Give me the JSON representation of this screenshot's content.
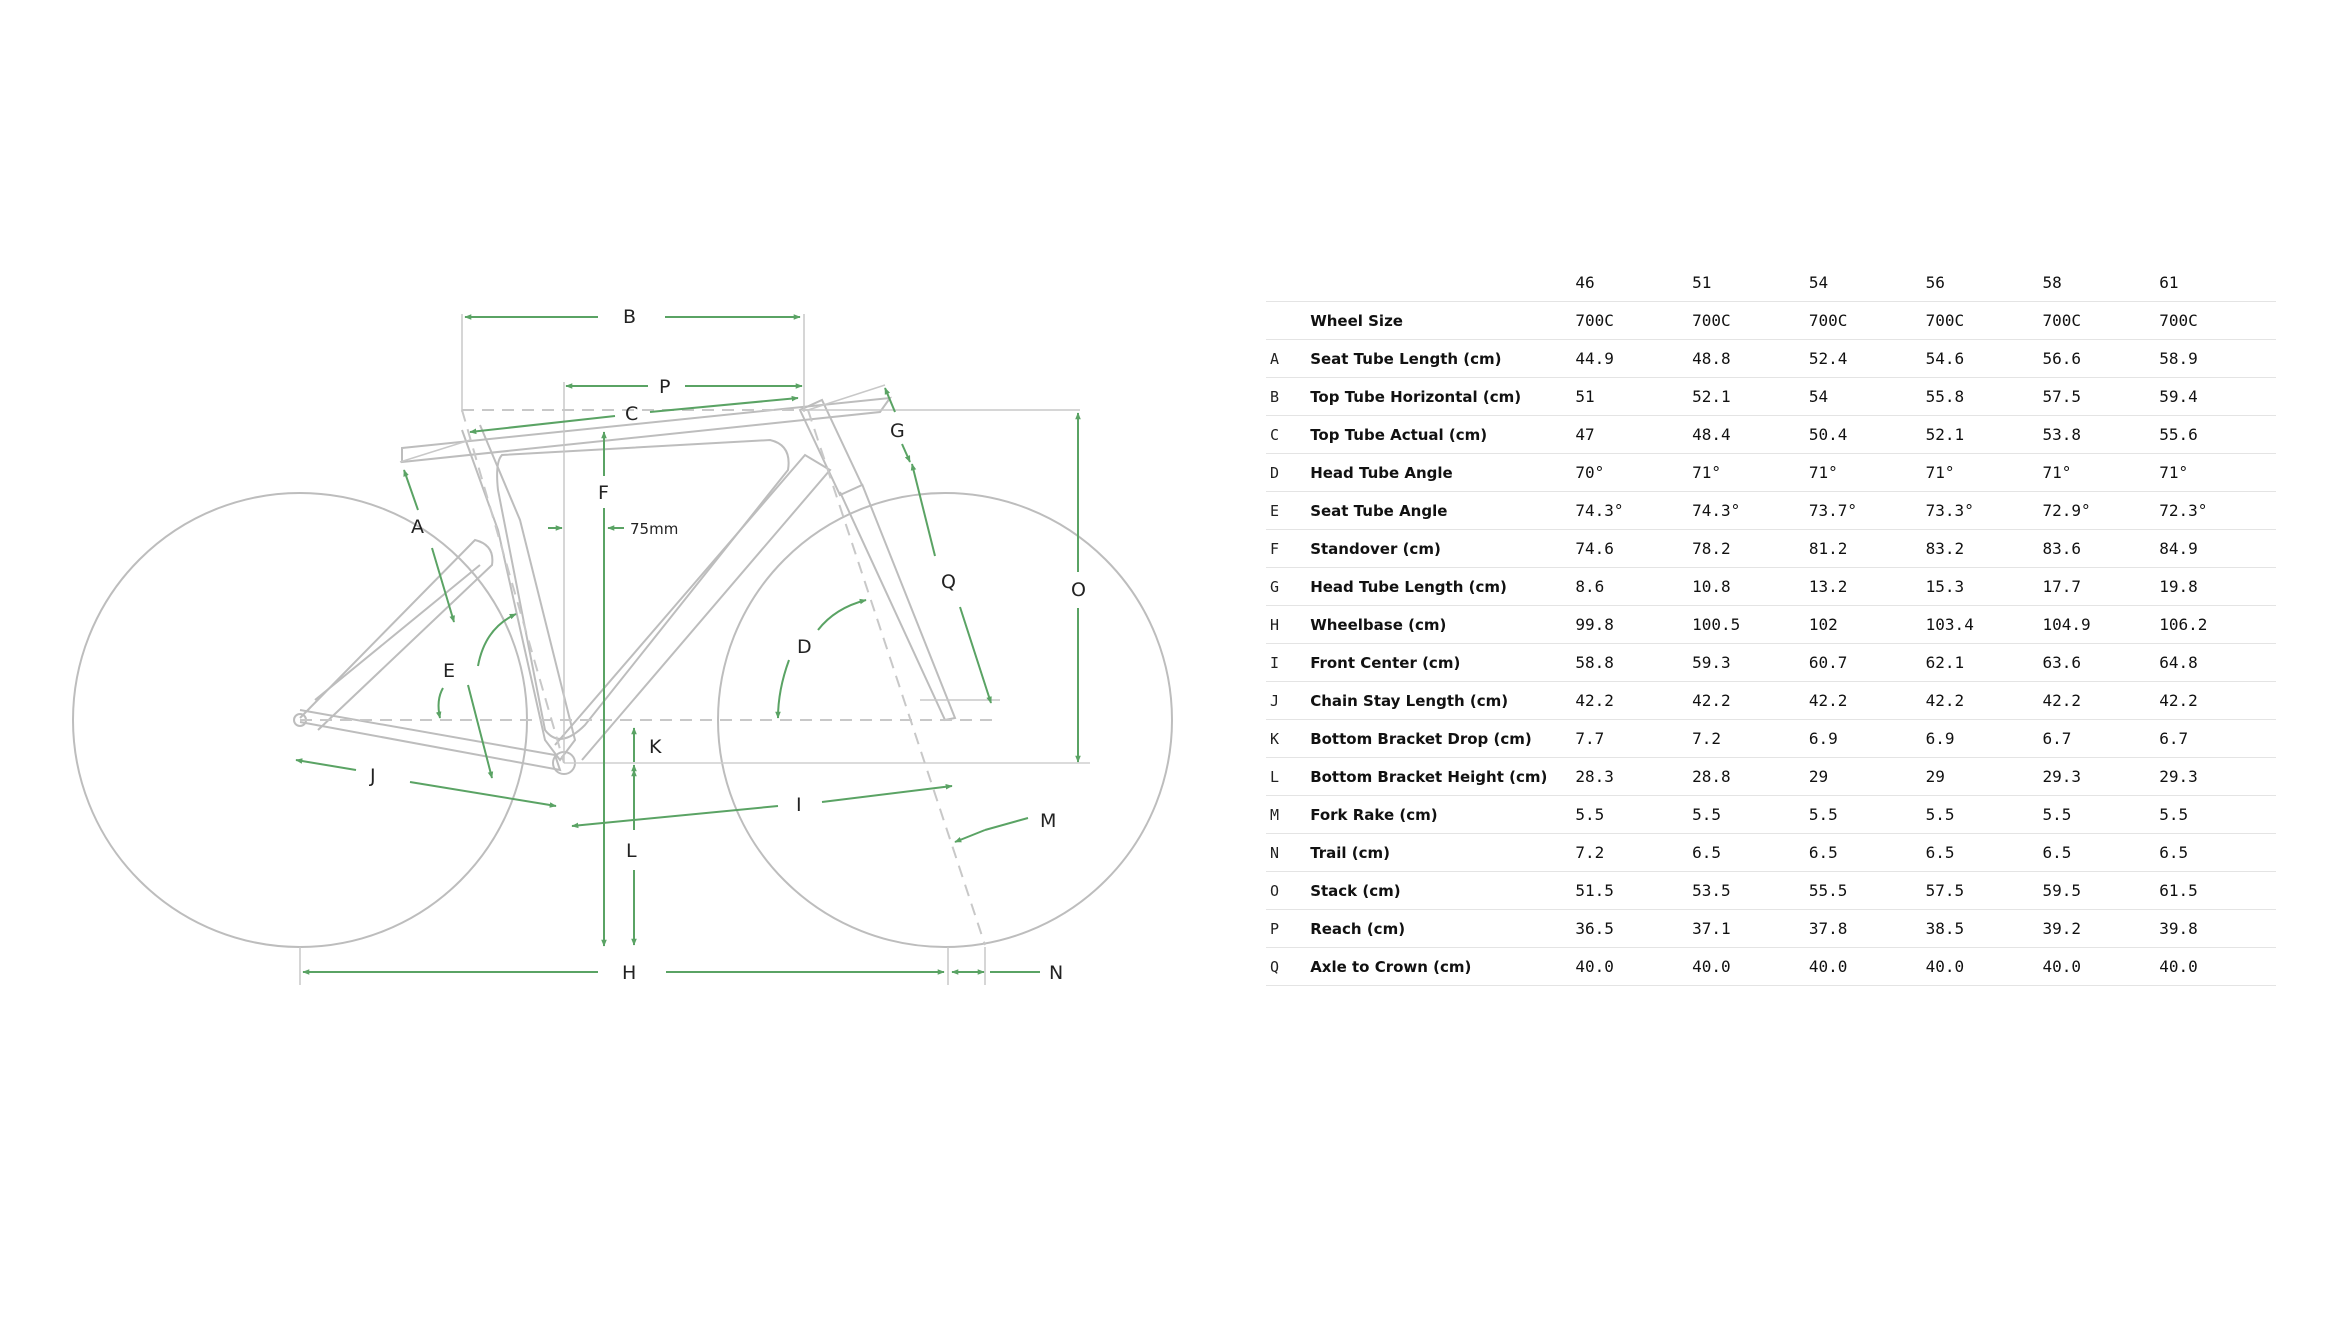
{
  "diagram": {
    "labels": {
      "A": "A",
      "B": "B",
      "C": "C",
      "D": "D",
      "E": "E",
      "F": "F",
      "G": "G",
      "H": "H",
      "I": "I",
      "J": "J",
      "K": "K",
      "L": "L",
      "M": "M",
      "N": "N",
      "O": "O",
      "P": "P",
      "Q": "Q",
      "offset": "75mm"
    },
    "colors": {
      "frame": "#bdbdbd",
      "dimension": "#5aa364",
      "text": "#222222",
      "rule": "#e4e4e4"
    }
  },
  "table": {
    "sizes": [
      "46",
      "51",
      "54",
      "56",
      "58",
      "61"
    ],
    "rows": [
      {
        "code": "",
        "label": "Wheel Size",
        "values": [
          "700C",
          "700C",
          "700C",
          "700C",
          "700C",
          "700C"
        ]
      },
      {
        "code": "A",
        "label": "Seat Tube Length (cm)",
        "values": [
          "44.9",
          "48.8",
          "52.4",
          "54.6",
          "56.6",
          "58.9"
        ]
      },
      {
        "code": "B",
        "label": "Top Tube Horizontal (cm)",
        "values": [
          "51",
          "52.1",
          "54",
          "55.8",
          "57.5",
          "59.4"
        ]
      },
      {
        "code": "C",
        "label": "Top Tube Actual (cm)",
        "values": [
          "47",
          "48.4",
          "50.4",
          "52.1",
          "53.8",
          "55.6"
        ]
      },
      {
        "code": "D",
        "label": "Head Tube Angle",
        "values": [
          "70°",
          "71°",
          "71°",
          "71°",
          "71°",
          "71°"
        ]
      },
      {
        "code": "E",
        "label": "Seat Tube Angle",
        "values": [
          "74.3°",
          "74.3°",
          "73.7°",
          "73.3°",
          "72.9°",
          "72.3°"
        ]
      },
      {
        "code": "F",
        "label": "Standover (cm)",
        "values": [
          "74.6",
          "78.2",
          "81.2",
          "83.2",
          "83.6",
          "84.9"
        ]
      },
      {
        "code": "G",
        "label": "Head Tube Length (cm)",
        "values": [
          "8.6",
          "10.8",
          "13.2",
          "15.3",
          "17.7",
          "19.8"
        ]
      },
      {
        "code": "H",
        "label": "Wheelbase (cm)",
        "values": [
          "99.8",
          "100.5",
          "102",
          "103.4",
          "104.9",
          "106.2"
        ]
      },
      {
        "code": "I",
        "label": "Front Center (cm)",
        "values": [
          "58.8",
          "59.3",
          "60.7",
          "62.1",
          "63.6",
          "64.8"
        ]
      },
      {
        "code": "J",
        "label": "Chain Stay Length (cm)",
        "values": [
          "42.2",
          "42.2",
          "42.2",
          "42.2",
          "42.2",
          "42.2"
        ]
      },
      {
        "code": "K",
        "label": "Bottom Bracket Drop (cm)",
        "values": [
          "7.7",
          "7.2",
          "6.9",
          "6.9",
          "6.7",
          "6.7"
        ]
      },
      {
        "code": "L",
        "label": "Bottom Bracket Height (cm)",
        "values": [
          "28.3",
          "28.8",
          "29",
          "29",
          "29.3",
          "29.3"
        ]
      },
      {
        "code": "M",
        "label": "Fork Rake (cm)",
        "values": [
          "5.5",
          "5.5",
          "5.5",
          "5.5",
          "5.5",
          "5.5"
        ]
      },
      {
        "code": "N",
        "label": "Trail (cm)",
        "values": [
          "7.2",
          "6.5",
          "6.5",
          "6.5",
          "6.5",
          "6.5"
        ]
      },
      {
        "code": "O",
        "label": "Stack (cm)",
        "values": [
          "51.5",
          "53.5",
          "55.5",
          "57.5",
          "59.5",
          "61.5"
        ]
      },
      {
        "code": "P",
        "label": "Reach (cm)",
        "values": [
          "36.5",
          "37.1",
          "37.8",
          "38.5",
          "39.2",
          "39.8"
        ]
      },
      {
        "code": "Q",
        "label": "Axle to Crown (cm)",
        "values": [
          "40.0",
          "40.0",
          "40.0",
          "40.0",
          "40.0",
          "40.0"
        ]
      }
    ]
  }
}
